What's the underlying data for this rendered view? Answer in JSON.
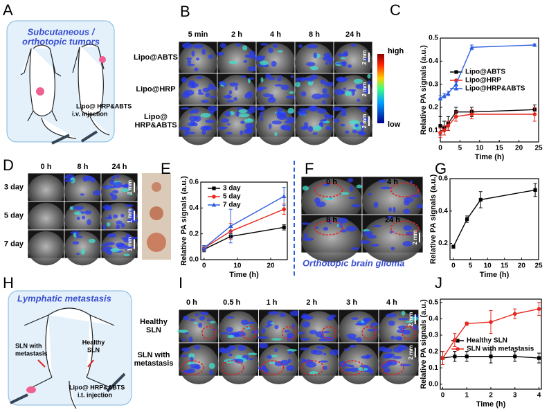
{
  "panel_labels": [
    "A",
    "B",
    "C",
    "D",
    "E",
    "F",
    "G",
    "H",
    "I",
    "J"
  ],
  "panel_a": {
    "title_lines": [
      "Subcutaneous /",
      "orthotopic tumors"
    ],
    "injection": [
      "Lipo@ HRP&ABTS",
      "i.v. injection"
    ]
  },
  "panel_b": {
    "columns": [
      "5 min",
      "2 h",
      "4 h",
      "8 h",
      "24 h"
    ],
    "rows": [
      [
        "Lipo@ABTS"
      ],
      [
        "Lipo@HRP"
      ],
      [
        "Lipo@",
        "HRP&ABTS"
      ]
    ],
    "colorbar": [
      "high",
      "low"
    ],
    "scale": "2 mm"
  },
  "panel_d": {
    "columns": [
      "0 h",
      "8 h",
      "24 h"
    ],
    "rows": [
      "3 day",
      "5 day",
      "7 day"
    ],
    "scale": "1 mm"
  },
  "panel_f": {
    "times": [
      "0 h",
      "4 h",
      "8 h",
      "24 h"
    ],
    "caption": "Orthotopic brain glioma",
    "scale": "2 mm"
  },
  "panel_h": {
    "title": "Lymphatic metastasis",
    "sln_metastasis": [
      "SLN with",
      "metastasis"
    ],
    "healthy": [
      "Healthy",
      "SLN"
    ],
    "injection": [
      "Lipo@ HRP&ABTS",
      "i.t. injection"
    ]
  },
  "panel_i": {
    "columns": [
      "0 h",
      "0.5 h",
      "1 h",
      "2 h",
      "3 h",
      "4 h"
    ],
    "rows": [
      [
        "Healthy",
        "SLN"
      ],
      [
        "SLN with",
        "metastasis"
      ]
    ],
    "scale": "2 mm"
  },
  "chart_data": [
    {
      "type": "line",
      "x_label": "Time (h)",
      "y_label": "Relative PA signals (a.u.)",
      "xlim": [
        0,
        25
      ],
      "xticks": [
        0,
        5,
        10,
        15,
        20,
        25
      ],
      "ylim": [
        0.05,
        0.5
      ],
      "yticks": [
        0.1,
        0.2,
        0.3,
        0.4,
        0.5
      ],
      "x": [
        0,
        1,
        2,
        4,
        8,
        24
      ],
      "series": [
        {
          "name": "Lipo@ABTS",
          "color": "#000000",
          "marker": "square",
          "values": [
            0.12,
            0.11,
            0.13,
            0.18,
            0.18,
            0.19
          ],
          "errors": [
            0.04,
            0.03,
            0.03,
            0.02,
            0.02,
            0.02
          ]
        },
        {
          "name": "Lipo@HRP",
          "color": "#e8261c",
          "marker": "circle",
          "values": [
            0.09,
            0.1,
            0.12,
            0.16,
            0.17,
            0.17
          ],
          "errors": [
            0.02,
            0.02,
            0.02,
            0.02,
            0.02,
            0.03
          ]
        },
        {
          "name": "Lipo@HRP&ABTS",
          "color": "#2f5fe0",
          "marker": "triangle",
          "values": [
            0.24,
            0.25,
            0.26,
            0.3,
            0.46,
            0.47
          ],
          "errors": [
            0.01,
            0.01,
            0.01,
            0.01,
            0.01,
            0.005
          ]
        }
      ]
    },
    {
      "type": "line",
      "x_label": "Time (h)",
      "y_label": "Relative PA signals (a.u.)",
      "xlim": [
        -1,
        25
      ],
      "xticks": [
        0,
        10,
        20
      ],
      "ylim": [
        0,
        0.6
      ],
      "yticks": [
        {
          "value": 0,
          "label": "0.0"
        },
        0.2,
        0.4,
        0.6
      ],
      "x": [
        0,
        8,
        24
      ],
      "series": [
        {
          "name": "3 day",
          "color": "#000000",
          "marker": "square",
          "values": [
            0.08,
            0.18,
            0.25
          ],
          "errors": [
            0.02,
            0.02,
            0.02
          ]
        },
        {
          "name": "5 day",
          "color": "#e8261c",
          "marker": "circle",
          "values": [
            0.09,
            0.22,
            0.39
          ],
          "errors": [
            0.02,
            0.06,
            0.04
          ]
        },
        {
          "name": "7 day",
          "color": "#2f5fe0",
          "marker": "triangle",
          "values": [
            0.09,
            0.26,
            0.49
          ],
          "errors": [
            0.02,
            0.13,
            0.07
          ]
        }
      ]
    },
    {
      "type": "line",
      "x_label": "Time (h)",
      "y_label": "Relative PA signals (a.u.)",
      "xlim": [
        -1,
        25
      ],
      "xticks": [
        0,
        5,
        10,
        15,
        20,
        25
      ],
      "ylim": [
        0.1,
        0.6
      ],
      "yticks": [
        0.2,
        0.4,
        0.6
      ],
      "x": [
        0,
        4,
        8,
        24
      ],
      "series": [
        {
          "color": "#000000",
          "marker": "square",
          "values": [
            0.18,
            0.35,
            0.47,
            0.53
          ],
          "errors": [
            0.01,
            0.02,
            0.05,
            0.04
          ]
        }
      ]
    },
    {
      "type": "line",
      "x_label": "Time (h)",
      "y_label": "Relative PA signals (a.u.)",
      "xlim": [
        -0.1,
        4.1
      ],
      "xticks": [
        0,
        1,
        2,
        3,
        4
      ],
      "ylim": [
        -0.03,
        0.52
      ],
      "yticks": [
        {
          "value": 0,
          "label": "0.0"
        },
        0.1,
        0.2,
        0.3,
        0.4,
        0.5
      ],
      "x": [
        0,
        0.5,
        1,
        2,
        3,
        4
      ],
      "series": [
        {
          "name": "Healthy SLN",
          "color": "#000000",
          "marker": "square",
          "values": [
            0.16,
            0.17,
            0.17,
            0.17,
            0.17,
            0.16
          ],
          "errors": [
            0.04,
            0.03,
            0.03,
            0.04,
            0.03,
            0.03
          ]
        },
        {
          "name": "SLN with metastasis",
          "color": "#e8261c",
          "marker": "circle",
          "values": [
            0.16,
            0.27,
            0.37,
            0.38,
            0.43,
            0.46
          ],
          "errors": [
            0.04,
            0.04,
            0.01,
            0.07,
            0.03,
            0.04
          ]
        }
      ]
    }
  ]
}
